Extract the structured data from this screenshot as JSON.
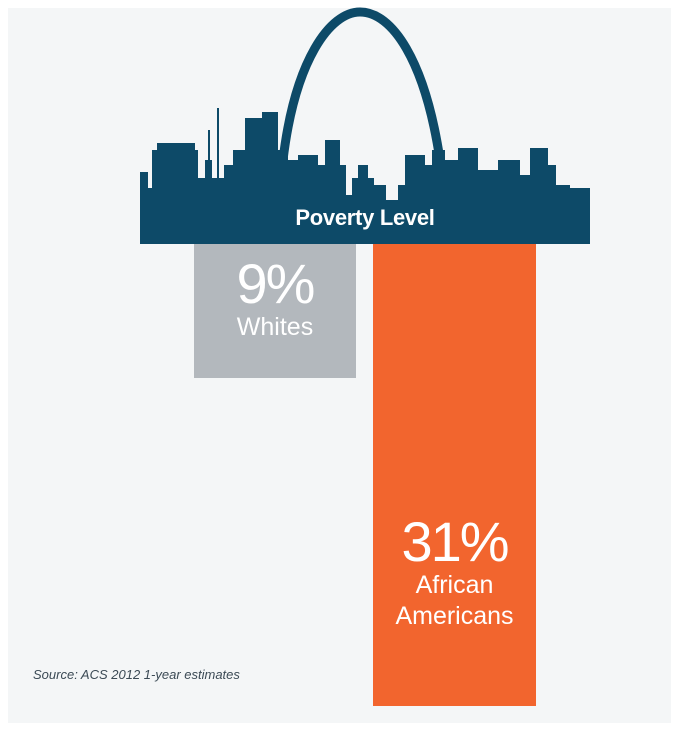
{
  "chart_data": {
    "type": "bar",
    "title": "Poverty Level",
    "unit": "%",
    "categories": [
      "Whites",
      "African Americans"
    ],
    "values": [
      9,
      31
    ],
    "value_labels": [
      "9%",
      "31%"
    ],
    "bar_labels": [
      "Whites",
      "African\nAmericans"
    ],
    "colors": [
      "#b3b8bd",
      "#f2652e"
    ],
    "orientation": "vertical-down",
    "source": "Source: ACS 2012 1-year estimates"
  },
  "colors": {
    "skyline": "#0d4a68",
    "background": "#f4f6f7"
  },
  "icons": {
    "skyline": "st-louis-skyline-with-gateway-arch-icon"
  }
}
